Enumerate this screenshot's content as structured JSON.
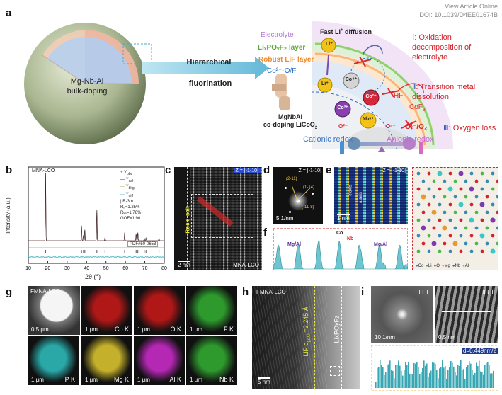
{
  "header": {
    "view_article": "View Article Online",
    "doi": "DOI: 10.1039/D4EE01674B"
  },
  "panel_a": {
    "label": "a",
    "core_label_1": "Mg-Nb-Al",
    "core_label_2": "bulk-doping",
    "arrow_label_1": "Hierarchical",
    "arrow_label_2": "fluorination",
    "particle_label_1": "MgNbAl",
    "particle_label_2": "co-doping LiCoO",
    "particle_label_2_sub": "2",
    "electrolyte": "Electrolyte",
    "fast_li": "Fast Li",
    "fast_li_sup": "+",
    "fast_li_tail": " diffusion",
    "lipof_layer": "LiₓPOᵧF₂ layer",
    "lif_layer": "Robust LiF layer",
    "co_of": "Co²⁺-O/F",
    "item1_num": "Ⅰ",
    "item1_text": ": Oxidation decomposition of electrolyte",
    "item2_num": "Ⅱ",
    "item2_text": ": Transition metal dissolution",
    "item3_num": "Ⅲ",
    "item3_text": ": Oxygen loss",
    "o_redox": "O¹⁻/O₂",
    "hf": "HF",
    "cof2": "CoF",
    "cof2_sub": "2",
    "li_ball": "Li⁺",
    "co4": "Co⁴⁺",
    "co3": "Co³⁺",
    "co2": "Co²⁺",
    "nb5": "Nb⁵⁺",
    "o2": "O²⁻",
    "on": "Oⁿ⁻",
    "cationic": "Cationic redox",
    "anionic": "Anionic redox"
  },
  "panel_b": {
    "label": "b",
    "sample": "MNA-LCO",
    "legend": [
      "Y",
      "Y",
      "Y",
      "Y"
    ],
    "legend_sub": [
      "obs",
      "cal",
      "bkg",
      "diff"
    ],
    "space_group": "R-3m",
    "rp": "Rₚ=1.25%",
    "rwp": "Rᵥₚ=1.76%",
    "gof": "GOF=1.90",
    "pdf": "PDF#50-0653",
    "ylabel": "Intensity (a.u.)",
    "xlabel": "2θ (°)"
  },
  "chart_data": {
    "type": "line",
    "title": "",
    "xlabel": "2θ (°)",
    "ylabel": "Intensity (a.u.)",
    "xlim": [
      10,
      80
    ],
    "xticks": [
      10,
      20,
      30,
      40,
      50,
      60,
      70,
      80
    ],
    "peaks_x": [
      18.9,
      37.4,
      38.4,
      39.1,
      45.3,
      49.5,
      59.6,
      65.5,
      66.4,
      69.7,
      70.6,
      77.3
    ],
    "peaks_rel": [
      1.0,
      0.22,
      0.08,
      0.16,
      0.45,
      0.05,
      0.12,
      0.1,
      0.12,
      0.04,
      0.04,
      0.04
    ],
    "series": [
      {
        "name": "Y_obs",
        "color": "#c0393b"
      },
      {
        "name": "Y_cal",
        "color": "#2b2b2b"
      },
      {
        "name": "Y_bkg",
        "color": "#b5a24a"
      },
      {
        "name": "Y_diff",
        "color": "#4fb8c8"
      }
    ],
    "grid": false
  },
  "panel_c": {
    "label": "c",
    "zone": "Z = [-1-10]",
    "rock_salt": "Rock -salt",
    "sample": "MNA-LCO",
    "scale": "2 nm"
  },
  "panel_d": {
    "label": "d",
    "zone": "Z = [-1-10]",
    "spots": [
      "(2-11)",
      "(1-14)",
      "(-11-8)"
    ],
    "scale": "5 1/nm"
  },
  "panel_e": {
    "label": "e",
    "zone": "Z = [-1-10]",
    "c_axis": "c axis",
    "a_axis": "a axis",
    "scale": "1 nm"
  },
  "panel_f": {
    "label": "f",
    "co": "Co",
    "nb": "Nb",
    "mgal_left": "Mg/Al",
    "mgal_right": "Mg/Al"
  },
  "structure_legend": [
    "Co",
    "Li",
    "O",
    "Mg",
    "Nb",
    "Al"
  ],
  "panel_g": {
    "label": "g",
    "sample": "FMNA-LCO",
    "main_scale": "0.5 μm",
    "maps": [
      {
        "scale": "1 μm",
        "element": "Co K",
        "color": "#b01818"
      },
      {
        "scale": "1 μm",
        "element": "O K",
        "color": "#b01818"
      },
      {
        "scale": "1 μm",
        "element": "F K",
        "color": "#2e9a2e"
      },
      {
        "scale": "1 μm",
        "element": "P K",
        "color": "#2aa7a7"
      },
      {
        "scale": "1 μm",
        "element": "Mg K",
        "color": "#c4b02a"
      },
      {
        "scale": "1 μm",
        "element": "Al K",
        "color": "#b428b4"
      },
      {
        "scale": "1 μm",
        "element": "Nb K",
        "color": "#2e9a2e"
      }
    ]
  },
  "panel_h": {
    "label": "h",
    "sample": "FMNA-LCO",
    "lif": "LiF d",
    "lif_sub": "(200)",
    "lif_tail": "=2.245 Å",
    "lixpoyfz": "LixPOyFz",
    "scale": "5 nm"
  },
  "panel_i": {
    "label": "i",
    "fft": "FFT",
    "ifft": "IFFT",
    "fft_scale": "10 1/nm",
    "ifft_scale": "0.5 nm",
    "d_spacing": "d=0.449nm/2"
  }
}
